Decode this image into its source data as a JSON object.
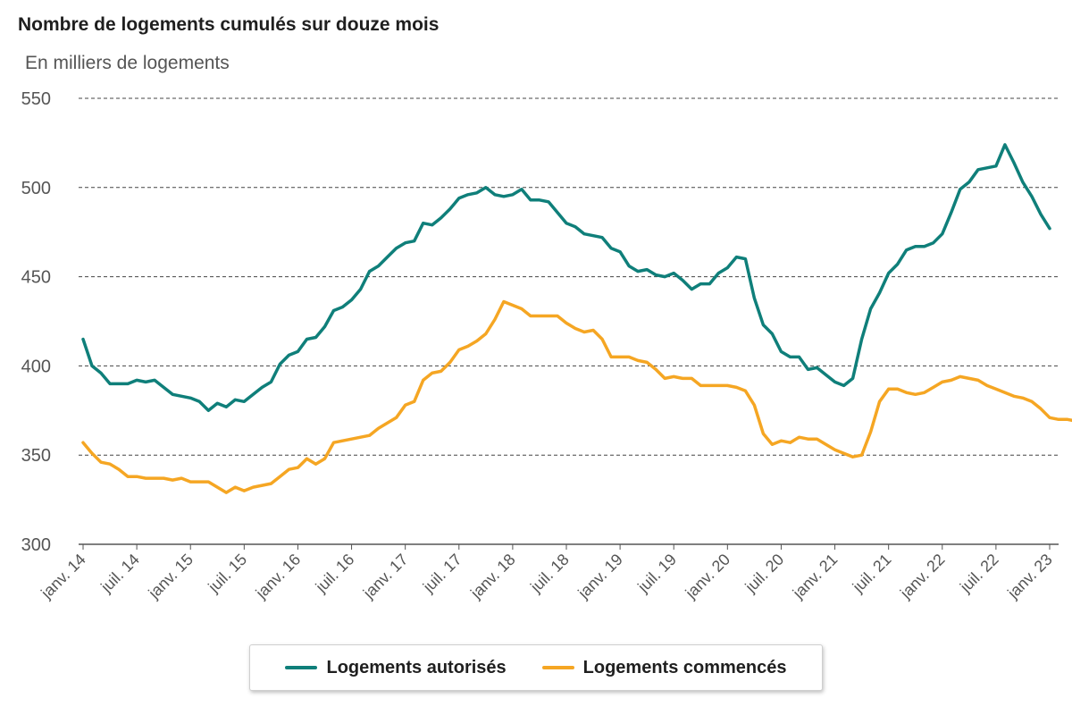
{
  "chart_data": {
    "type": "line",
    "title": "Nombre de logements cumulés sur douze mois",
    "subtitle": "En milliers de logements",
    "ylim": [
      300,
      550
    ],
    "yticks": [
      300,
      350,
      400,
      450,
      500,
      550
    ],
    "grid": true,
    "legend_position": "bottom",
    "x_start": "2014-01",
    "x_tick_labels": [
      "janv. 14",
      "juil. 14",
      "janv. 15",
      "juil. 15",
      "janv. 16",
      "juil. 16",
      "janv. 17",
      "juil. 17",
      "janv. 18",
      "juil. 18",
      "janv. 19",
      "juil. 19",
      "janv. 20",
      "juil. 20",
      "janv. 21",
      "juil. 21",
      "janv. 22",
      "juil. 22",
      "janv. 23"
    ],
    "series": [
      {
        "name": "Logements autorisés",
        "color": "#0f7f7a",
        "values": [
          415,
          400,
          396,
          390,
          390,
          390,
          392,
          391,
          392,
          388,
          384,
          383,
          382,
          380,
          375,
          379,
          377,
          381,
          380,
          384,
          388,
          391,
          401,
          406,
          408,
          415,
          416,
          422,
          431,
          433,
          437,
          443,
          453,
          456,
          461,
          466,
          469,
          470,
          480,
          479,
          483,
          488,
          494,
          496,
          497,
          500,
          496,
          495,
          496,
          499,
          493,
          493,
          492,
          486,
          480,
          478,
          474,
          473,
          472,
          466,
          464,
          456,
          453,
          454,
          451,
          450,
          452,
          448,
          443,
          446,
          446,
          452,
          455,
          461,
          460,
          438,
          423,
          418,
          408,
          405,
          405,
          398,
          399,
          395,
          391,
          389,
          393,
          415,
          432,
          441,
          452,
          457,
          465,
          467,
          467,
          469,
          474,
          486,
          499,
          503,
          510,
          511,
          512,
          524,
          514,
          503,
          495,
          485,
          477
        ]
      },
      {
        "name": "Logements commencés",
        "color": "#f5a623",
        "values": [
          357,
          351,
          346,
          345,
          342,
          338,
          338,
          337,
          337,
          337,
          336,
          337,
          335,
          335,
          335,
          332,
          329,
          332,
          330,
          332,
          333,
          334,
          338,
          342,
          343,
          348,
          345,
          348,
          357,
          358,
          359,
          360,
          361,
          365,
          368,
          371,
          378,
          380,
          392,
          396,
          397,
          402,
          409,
          411,
          414,
          418,
          426,
          436,
          434,
          432,
          428,
          428,
          428,
          428,
          424,
          421,
          419,
          420,
          415,
          405,
          405,
          405,
          403,
          402,
          398,
          393,
          394,
          393,
          393,
          389,
          389,
          389,
          389,
          388,
          386,
          378,
          362,
          356,
          358,
          357,
          360,
          359,
          359,
          356,
          353,
          351,
          349,
          350,
          363,
          380,
          387,
          387,
          385,
          384,
          385,
          388,
          391,
          392,
          394,
          393,
          392,
          389,
          387,
          385,
          383,
          382,
          380,
          376,
          371,
          370,
          370,
          369
        ]
      }
    ]
  }
}
